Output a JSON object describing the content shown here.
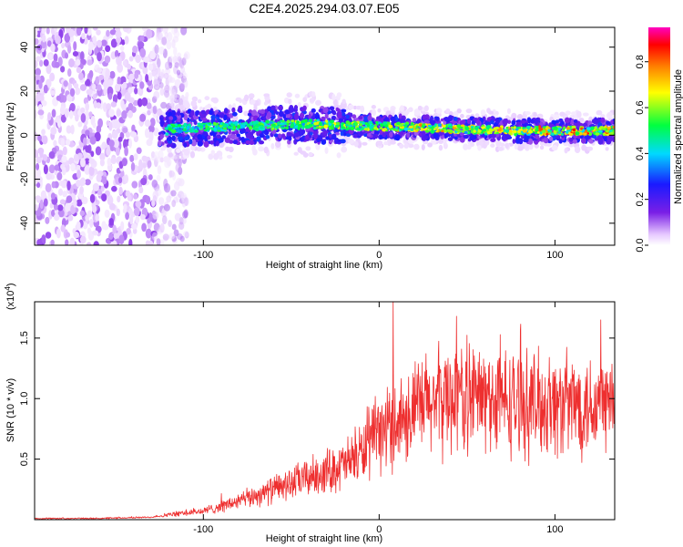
{
  "title": "C2E4.2025.294.03.07.E05",
  "chart_data": [
    {
      "type": "heatmap",
      "xlabel": "Height of straight line (km)",
      "ylabel": "Frequency (Hz)",
      "xlim": [
        -196,
        134
      ],
      "ylim": [
        -50,
        49
      ],
      "xticks": [
        -100,
        0,
        100
      ],
      "yticks": [
        -40,
        -20,
        0,
        20,
        40
      ],
      "colorbar": {
        "label": "Normalized spectral amplitude",
        "range": [
          0.0,
          0.95
        ],
        "ticks": [
          0.0,
          0.2,
          0.4,
          0.6,
          0.8
        ],
        "colormap": [
          "#ffffff",
          "#e6c8ff",
          "#7a1fe6",
          "#1a1aff",
          "#00d9ff",
          "#00ff40",
          "#ffff00",
          "#ff8000",
          "#ff0000",
          "#ff00c0"
        ]
      },
      "regions": [
        {
          "name": "noise",
          "x": [
            -196,
            -115
          ],
          "freq": [
            -50,
            49
          ],
          "amplitude": [
            0.0,
            0.3
          ]
        },
        {
          "name": "signal band",
          "x": [
            -125,
            134
          ],
          "center_freq": [
            3,
            4,
            5,
            4,
            3,
            2,
            2
          ],
          "center_x": [
            -120,
            -80,
            -40,
            0,
            40,
            80,
            130
          ],
          "amplitude": [
            0.2,
            0.9
          ]
        }
      ]
    },
    {
      "type": "line",
      "xlabel": "Height of straight line (km)",
      "ylabel": "SNR (10 * v/v)",
      "y_multiplier_label": "(x10",
      "y_multiplier_exp": "4",
      "y_multiplier_close": ")",
      "xlim": [
        -196,
        134
      ],
      "ylim": [
        0.0,
        1.8
      ],
      "xticks": [
        -100,
        0,
        100
      ],
      "yticks": [
        0.5,
        1.0,
        1.5
      ],
      "series": [
        {
          "name": "SNR",
          "color": "#ee2f2f",
          "x": [
            -196,
            -160,
            -130,
            -120,
            -100,
            -80,
            -60,
            -40,
            -20,
            -10,
            0,
            10,
            20,
            30,
            40,
            50,
            60,
            80,
            100,
            120,
            134
          ],
          "values": [
            0.01,
            0.01,
            0.02,
            0.04,
            0.07,
            0.15,
            0.25,
            0.35,
            0.45,
            0.55,
            0.7,
            0.82,
            0.9,
            0.97,
            1.02,
            1.03,
            1.0,
            0.96,
            0.95,
            0.96,
            0.98
          ],
          "peaks": [
            {
              "x": 8,
              "y": 1.8
            },
            {
              "x": 44,
              "y": 1.68
            },
            {
              "x": 126,
              "y": 1.65
            }
          ]
        }
      ]
    }
  ]
}
